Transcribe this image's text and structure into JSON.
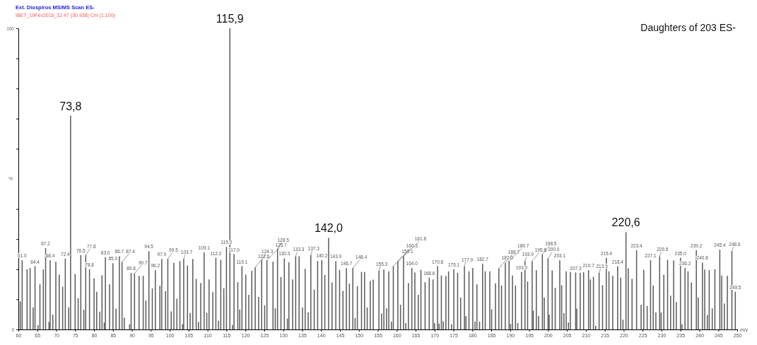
{
  "chart_data": {
    "type": "bar",
    "title": "Ext. Diospiros  MS/MS Scan ES-",
    "subtitle": "IBET_19Fev2016_32 47 (30.938) Cm (1:100)",
    "xlabel": "m/z",
    "ylabel": "%",
    "xlim": [
      60,
      250
    ],
    "ylim": [
      0,
      100
    ],
    "xticks": [
      60,
      65,
      70,
      75,
      80,
      85,
      90,
      95,
      100,
      105,
      110,
      115,
      120,
      125,
      130,
      135,
      140,
      145,
      150,
      155,
      160,
      165,
      170,
      175,
      180,
      185,
      190,
      195,
      200,
      205,
      210,
      215,
      220,
      225,
      230,
      235,
      240,
      245,
      250
    ],
    "yticks": [
      0,
      {
        "value": 10,
        "label": null
      },
      {
        "value": 20,
        "label": null
      },
      {
        "value": 30,
        "label": null
      },
      {
        "value": 40,
        "label": null
      },
      {
        "value": 60,
        "label": null
      },
      {
        "value": 70,
        "label": null
      },
      {
        "value": 80,
        "label": null
      },
      {
        "value": 90,
        "label": null
      },
      100
    ],
    "grid": false,
    "annotations": [
      "Daughters of 203 ES-",
      {
        "text": "73,8",
        "x": 73.8,
        "y": 71
      },
      {
        "text": "115,9",
        "x": 115.9,
        "y": 100
      },
      {
        "text": "142,0",
        "x": 142.0,
        "y": 30.4
      },
      {
        "text": "220,6",
        "x": 220.6,
        "y": 32.3
      },
      {
        "text": "61.0",
        "x": 61.0,
        "y": 23
      },
      {
        "text": "64.4",
        "x": 64.4,
        "y": 21
      },
      {
        "text": "67.2",
        "x": 67.2,
        "y": 27
      },
      {
        "text": "68.4",
        "x": 68.4,
        "y": 23
      },
      {
        "text": "72.4",
        "x": 72.4,
        "y": 23.5
      },
      {
        "text": "76.5",
        "x": 76.5,
        "y": 24.7
      },
      {
        "text": "77.8",
        "x": 77.8,
        "y": 24.7
      },
      {
        "text": "78.8",
        "x": 78.8,
        "y": 20
      },
      {
        "text": "83.0",
        "x": 83.0,
        "y": 24
      },
      {
        "text": "85.0",
        "x": 85.0,
        "y": 22
      },
      {
        "text": "86.7",
        "x": 86.7,
        "y": 24.3
      },
      {
        "text": "87.4",
        "x": 87.4,
        "y": 22.4
      },
      {
        "text": "89.8",
        "x": 89.8,
        "y": 18.8
      },
      {
        "text": "90.7",
        "x": 90.7,
        "y": 18.6
      },
      {
        "text": "94.5",
        "x": 94.5,
        "y": 26
      },
      {
        "text": "96.2",
        "x": 96.2,
        "y": 19.7
      },
      {
        "text": "97.9",
        "x": 97.9,
        "y": 23.4
      },
      {
        "text": "99.5",
        "x": 99.5,
        "y": 23.4
      },
      {
        "text": "103.7",
        "x": 103.7,
        "y": 23.4
      },
      {
        "text": "109.1",
        "x": 109.1,
        "y": 25.6
      },
      {
        "text": "112.2",
        "x": 112.2,
        "y": 23.8
      },
      {
        "text": "115.0",
        "x": 115.0,
        "y": 27.4
      },
      {
        "text": "117.0",
        "x": 117.0,
        "y": 25
      },
      {
        "text": "119.1",
        "x": 119.1,
        "y": 21
      },
      {
        "text": "122.6",
        "x": 122.6,
        "y": 20.6
      },
      {
        "text": "124.3",
        "x": 124.3,
        "y": 23
      },
      {
        "text": "125.7",
        "x": 125.7,
        "y": 23
      },
      {
        "text": "128.5",
        "x": 128.5,
        "y": 26.8
      },
      {
        "text": "130.3",
        "x": 130.3,
        "y": 23.6
      },
      {
        "text": "133.3",
        "x": 133.3,
        "y": 24.3
      },
      {
        "text": "137.3",
        "x": 137.3,
        "y": 24.7
      },
      {
        "text": "140.2",
        "x": 140.2,
        "y": 23
      },
      {
        "text": "143.9",
        "x": 143.9,
        "y": 22.7
      },
      {
        "text": "146.7",
        "x": 146.7,
        "y": 20.4
      },
      {
        "text": "148.4",
        "x": 148.4,
        "y": 20.4
      },
      {
        "text": "155.3",
        "x": 155.3,
        "y": 19.5
      },
      {
        "text": "159.1",
        "x": 159.1,
        "y": 21
      },
      {
        "text": "160.3",
        "x": 160.3,
        "y": 22.7
      },
      {
        "text": "161.8",
        "x": 161.8,
        "y": 24.3
      },
      {
        "text": "164.0",
        "x": 164.0,
        "y": 20.4
      },
      {
        "text": "168.6",
        "x": 168.6,
        "y": 17.2
      },
      {
        "text": "170.8",
        "x": 170.8,
        "y": 21
      },
      {
        "text": "175.1",
        "x": 175.1,
        "y": 20
      },
      {
        "text": "177.9",
        "x": 177.9,
        "y": 21
      },
      {
        "text": "182.7",
        "x": 182.7,
        "y": 21.8
      },
      {
        "text": "187.0",
        "x": 187.0,
        "y": 20.3
      },
      {
        "text": "188.7",
        "x": 188.7,
        "y": 22.1
      },
      {
        "text": "189.7",
        "x": 189.7,
        "y": 22.7
      },
      {
        "text": "193.0",
        "x": 193.0,
        "y": 19.1
      },
      {
        "text": "193.9",
        "x": 193.9,
        "y": 22.7
      },
      {
        "text": "195.8",
        "x": 195.8,
        "y": 22.7
      },
      {
        "text": "198.5",
        "x": 198.5,
        "y": 25
      },
      {
        "text": "200.0",
        "x": 200.0,
        "y": 23.6
      },
      {
        "text": "203.1",
        "x": 203.1,
        "y": 23
      },
      {
        "text": "207.3",
        "x": 207.3,
        "y": 18.8
      },
      {
        "text": "210.7",
        "x": 210.7,
        "y": 19.7
      },
      {
        "text": "213.5",
        "x": 213.5,
        "y": 18.8
      },
      {
        "text": "215.4",
        "x": 215.4,
        "y": 23.8
      },
      {
        "text": "218.4",
        "x": 218.4,
        "y": 21
      },
      {
        "text": "223.4",
        "x": 223.4,
        "y": 26.3
      },
      {
        "text": "227.1",
        "x": 227.1,
        "y": 23
      },
      {
        "text": "229.5",
        "x": 229.5,
        "y": 24.3
      },
      {
        "text": "235.0",
        "x": 235.0,
        "y": 23.8
      },
      {
        "text": "236.2",
        "x": 236.2,
        "y": 20.4
      },
      {
        "text": "239.2",
        "x": 239.2,
        "y": 26.3
      },
      {
        "text": "240.8",
        "x": 240.8,
        "y": 22.2
      },
      {
        "text": "245.4",
        "x": 245.4,
        "y": 26.5
      },
      {
        "text": "248.6",
        "x": 248.6,
        "y": 26
      },
      {
        "text": "249.5",
        "x": 249.5,
        "y": 12.5
      }
    ],
    "series": [
      {
        "color": "#5a5a5a",
        "x": [
          60.5,
          61.0,
          62.3,
          63.1,
          63.9,
          64.4,
          65.2,
          65.7,
          66.6,
          67.2,
          68.1,
          68.4,
          69.1,
          69.9,
          70.8,
          71.7,
          72.4,
          73.3,
          73.8,
          75.0,
          75.8,
          76.5,
          77.3,
          77.8,
          78.8,
          80.0,
          80.7,
          81.5,
          82.1,
          82.7,
          83.0,
          84.1,
          85.0,
          85.8,
          86.7,
          87.4,
          88.0,
          89.4,
          89.8,
          90.7,
          91.9,
          93.0,
          93.7,
          94.5,
          95.4,
          96.2,
          97.4,
          97.9,
          98.9,
          99.5,
          100.4,
          101.1,
          101.9,
          102.7,
          103.4,
          103.7,
          104.7,
          105.4,
          106.1,
          107.0,
          107.6,
          108.2,
          109.1,
          109.8,
          110.4,
          111.4,
          112.2,
          112.9,
          113.5,
          114.3,
          115.0,
          115.9,
          116.6,
          117.0,
          118.0,
          118.5,
          119.1,
          120.1,
          120.9,
          121.7,
          122.6,
          123.5,
          124.3,
          125.1,
          125.7,
          127.3,
          127.9,
          128.5,
          129.4,
          130.3,
          131.1,
          131.5,
          132.5,
          133.3,
          134.2,
          135.1,
          135.8,
          136.6,
          137.3,
          138.2,
          139.1,
          140.2,
          141.0,
          142.0,
          142.9,
          143.9,
          144.9,
          145.8,
          146.7,
          147.5,
          148.4,
          149.0,
          149.6,
          150.7,
          151.5,
          152.2,
          153.0,
          153.8,
          155.3,
          156.0,
          156.6,
          157.3,
          157.9,
          158.6,
          159.1,
          160.3,
          161.0,
          161.8,
          162.4,
          163.1,
          164.0,
          164.8,
          165.7,
          166.4,
          167.5,
          168.6,
          169.6,
          170.0,
          170.8,
          171.2,
          171.8,
          172.3,
          173.0,
          173.7,
          174.5,
          175.1,
          176.1,
          176.9,
          177.9,
          178.3,
          179.1,
          180.1,
          180.7,
          181.2,
          181.9,
          182.7,
          183.4,
          184.6,
          185.1,
          186.1,
          187.0,
          187.7,
          188.7,
          189.7,
          190.1,
          190.6,
          191.4,
          192.0,
          193.0,
          193.9,
          194.6,
          195.8,
          196.1,
          196.9,
          197.5,
          198.5,
          199.0,
          200.0,
          200.3,
          201.1,
          201.9,
          203.1,
          203.6,
          204.2,
          204.8,
          205.4,
          205.9,
          207.3,
          207.6,
          208.5,
          209.4,
          210.7,
          211.2,
          212.0,
          212.6,
          213.5,
          214.4,
          215.4,
          216.1,
          217.1,
          218.4,
          219.2,
          219.8,
          220.6,
          221.2,
          222.2,
          223.4,
          224.6,
          225.3,
          226.2,
          227.1,
          227.8,
          228.5,
          229.5,
          229.9,
          230.6,
          231.6,
          232.4,
          233.2,
          233.9,
          235.0,
          235.4,
          236.2,
          237.0,
          237.9,
          239.2,
          239.7,
          240.8,
          241.4,
          242.1,
          242.6,
          243.4,
          244.1,
          245.4,
          245.9,
          246.6,
          247.4,
          248.6,
          249.5
        ],
        "values": [
          9.3,
          23,
          20,
          20.4,
          7.3,
          21,
          1.4,
          15,
          19.9,
          27,
          2.5,
          23,
          4.9,
          22.5,
          18.2,
          14.2,
          23.5,
          7.3,
          71,
          18.4,
          10.4,
          24.7,
          6.5,
          24.7,
          20,
          17,
          12.5,
          5.9,
          18,
          2.3,
          24,
          15,
          22,
          6.9,
          24.3,
          22.4,
          3.9,
          1.7,
          18.8,
          18.6,
          17.8,
          17.8,
          9.6,
          26,
          13.6,
          19.7,
          14.5,
          23.4,
          12.7,
          23.4,
          6,
          22.1,
          10.2,
          22.7,
          1.7,
          23.4,
          21.2,
          5.5,
          23.4,
          16.8,
          2.5,
          15.4,
          25.6,
          5.5,
          16.6,
          12.4,
          23.8,
          2.9,
          23.1,
          13.7,
          27.4,
          100,
          1.5,
          25,
          15.7,
          6.6,
          21,
          18.2,
          11.5,
          19.5,
          20.6,
          10.8,
          23,
          8,
          23,
          22.5,
          7,
          26.8,
          17.4,
          23.6,
          3.6,
          22.3,
          16.6,
          24.3,
          24.3,
          7.3,
          20.1,
          5.7,
          24.7,
          13.2,
          22.7,
          23,
          18.1,
          30.4,
          15.6,
          22.7,
          19.8,
          12.8,
          20.4,
          15.2,
          20.4,
          3.8,
          14.4,
          19.1,
          19.1,
          7.3,
          16.1,
          16.5,
          19.5,
          5.3,
          19.9,
          7,
          19.3,
          2.6,
          21,
          22.7,
          8.2,
          24.3,
          2.1,
          15.4,
          20.4,
          18.9,
          11.5,
          19.8,
          15.7,
          17.2,
          16.6,
          2.1,
          21,
          1.9,
          17.9,
          2.7,
          17.8,
          19.3,
          1.7,
          20,
          18.8,
          10.6,
          21,
          4.4,
          19.3,
          20.4,
          2.6,
          15,
          2.6,
          21.8,
          19.3,
          19.3,
          6.7,
          15.3,
          20.3,
          14.6,
          22.1,
          22.7,
          1.8,
          17.9,
          14.6,
          2.1,
          19.1,
          22.7,
          15.9,
          22.7,
          6.2,
          19.7,
          4.5,
          25,
          10.6,
          23.6,
          4.9,
          19.6,
          13.8,
          23,
          14.7,
          5.4,
          19.3,
          2.3,
          19.1,
          18.9,
          6.9,
          18.8,
          19,
          19.7,
          16.6,
          17.5,
          1.2,
          18.8,
          14.7,
          23.8,
          19.3,
          17.8,
          21,
          17.2,
          3.2,
          32.3,
          20.3,
          16.8,
          26.3,
          8.2,
          19.8,
          7.8,
          23,
          14.6,
          5.7,
          24.3,
          5.6,
          18.2,
          23.1,
          11.2,
          22.9,
          9.1,
          23.8,
          1.7,
          20.4,
          19.3,
          15.6,
          26.3,
          10.6,
          22.2,
          19.9,
          4.8,
          19.7,
          7,
          20,
          26.5,
          17.9,
          8.6,
          17.8,
          26,
          12.5
        ]
      }
    ]
  }
}
